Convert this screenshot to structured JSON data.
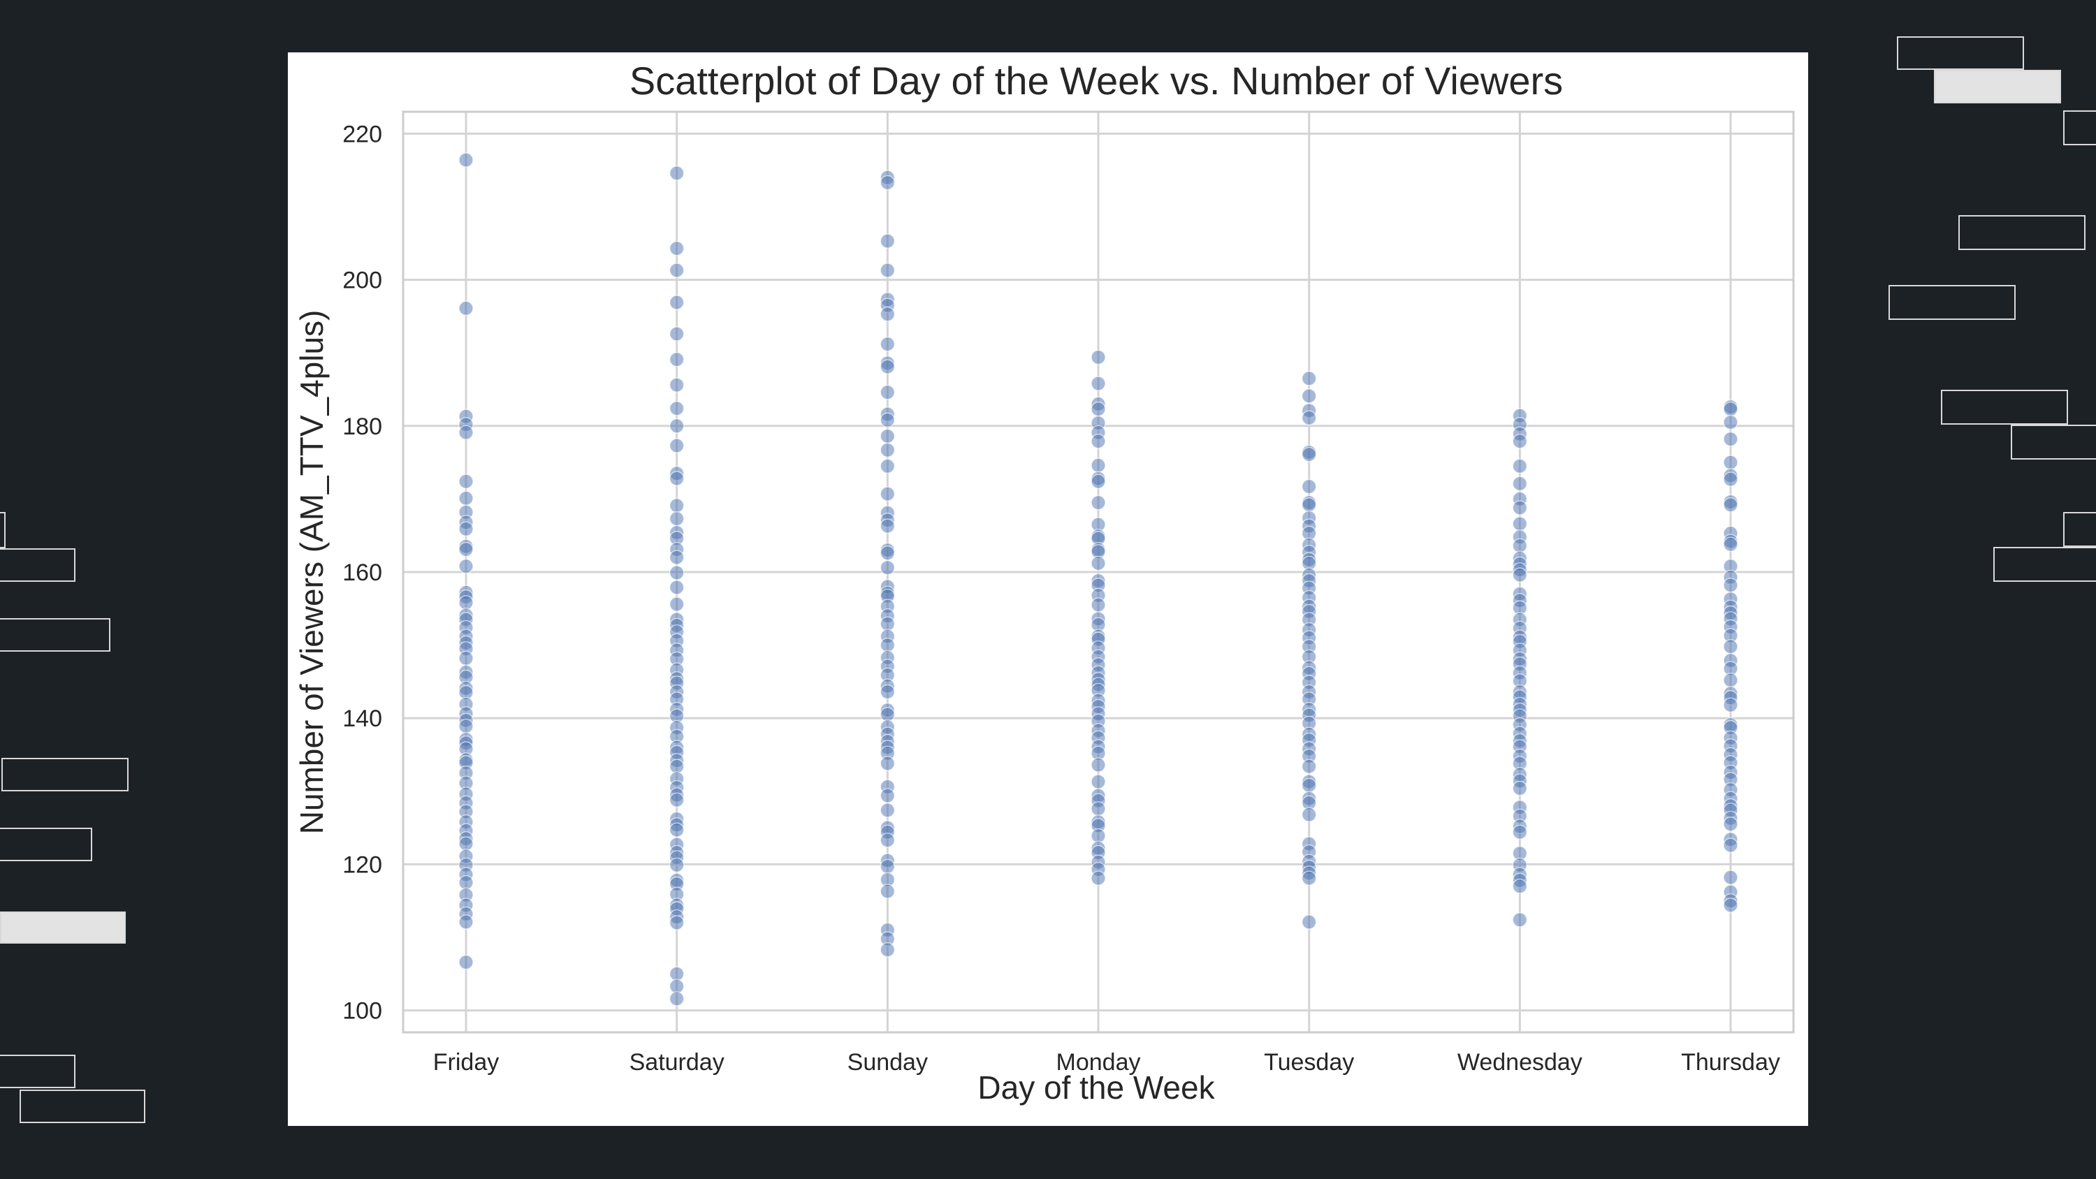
{
  "chart_data": {
    "type": "scatter",
    "title": "Scatterplot of Day of the Week vs. Number of Viewers",
    "xlabel": "Day of the Week",
    "ylabel": "Number of Viewers (AM_TTV_4plus)",
    "ylim": [
      97,
      223
    ],
    "yticks": [
      100,
      120,
      140,
      160,
      180,
      200,
      220
    ],
    "grid": true,
    "categories": [
      "Friday",
      "Saturday",
      "Sunday",
      "Monday",
      "Tuesday",
      "Wednesday",
      "Thursday"
    ],
    "point_color": "#4c72b0",
    "point_opacity": 0.5,
    "series": [
      {
        "values": [
          {
            "x": "Friday",
            "y": [
              216.4,
              196.1,
              181.3,
              180.2,
              179.1,
              172.4,
              170.1,
              168.2,
              166.8,
              165.9,
              163.5,
              163.1,
              160.8,
              157.2,
              156.6,
              155.8,
              154.1,
              153.5,
              152.4,
              151.2,
              150.3,
              149.5,
              148.2,
              146.3,
              145.6,
              144.1,
              143.5,
              141.9,
              140.6,
              139.7,
              138.9,
              137.1,
              136.6,
              135.8,
              134.3,
              133.9,
              132.5,
              131.1,
              129.6,
              128.4,
              127.2,
              125.8,
              124.6,
              123.5,
              122.8,
              121.1,
              119.9,
              118.6,
              117.5,
              115.8,
              114.4,
              113.2,
              112.1,
              106.6
            ]
          },
          {
            "x": "Saturday",
            "y": [
              214.6,
              204.3,
              201.3,
              196.9,
              192.6,
              189.1,
              185.6,
              182.4,
              180.0,
              177.3,
              173.5,
              172.8,
              169.1,
              167.3,
              165.4,
              164.6,
              163.1,
              162.0,
              159.9,
              157.9,
              155.6,
              153.5,
              152.7,
              151.8,
              150.6,
              149.3,
              148.1,
              146.6,
              145.4,
              144.8,
              143.6,
              142.6,
              141.2,
              140.3,
              138.7,
              137.5,
              136.0,
              135.3,
              134.2,
              133.4,
              131.7,
              130.5,
              129.5,
              128.8,
              126.2,
              125.4,
              124.7,
              122.7,
              121.6,
              120.9,
              119.9,
              117.8,
              117.3,
              115.9,
              114.4,
              113.9,
              112.8,
              112.0,
              105.0,
              103.3,
              101.6
            ]
          },
          {
            "x": "Sunday",
            "y": [
              214.0,
              213.3,
              205.3,
              201.3,
              197.3,
              196.5,
              195.3,
              191.2,
              188.6,
              188.1,
              184.6,
              181.6,
              180.8,
              178.6,
              176.7,
              174.5,
              170.7,
              168.1,
              167.1,
              166.3,
              163.0,
              162.6,
              160.6,
              158.0,
              157.1,
              156.7,
              155.3,
              154.0,
              152.9,
              151.2,
              150.0,
              148.3,
              147.1,
              145.9,
              144.4,
              143.6,
              141.1,
              140.5,
              138.8,
              137.8,
              136.8,
              136.0,
              135.2,
              133.8,
              130.6,
              129.4,
              127.4,
              125.0,
              124.4,
              123.3,
              120.5,
              119.7,
              117.9,
              116.3,
              111.0,
              109.8,
              108.3
            ]
          },
          {
            "x": "Monday",
            "y": [
              189.4,
              185.8,
              183.0,
              182.3,
              180.4,
              179.1,
              177.9,
              174.6,
              172.8,
              172.4,
              169.5,
              166.5,
              164.9,
              164.6,
              163.1,
              162.8,
              161.2,
              158.8,
              158.2,
              156.8,
              155.5,
              153.6,
              152.8,
              151.2,
              150.8,
              149.6,
              148.4,
              147.3,
              146.2,
              145.3,
              144.6,
              143.8,
              142.4,
              141.6,
              140.6,
              139.6,
              138.3,
              137.3,
              136.1,
              135.2,
              133.6,
              131.3,
              129.4,
              128.7,
              127.6,
              125.8,
              125.3,
              123.9,
              122.2,
              121.6,
              120.3,
              119.3,
              118.1
            ]
          },
          {
            "x": "Tuesday",
            "y": [
              186.5,
              184.1,
              182.1,
              181.1,
              176.4,
              176.1,
              171.7,
              169.5,
              169.2,
              167.4,
              166.3,
              165.3,
              163.7,
              162.7,
              161.7,
              161.2,
              159.6,
              158.8,
              157.8,
              156.5,
              155.3,
              154.6,
              153.5,
              152.1,
              151.0,
              149.8,
              148.4,
              146.9,
              146.1,
              144.9,
              143.6,
              142.6,
              141.2,
              140.4,
              139.3,
              137.8,
              137.0,
              135.8,
              134.8,
              133.4,
              131.3,
              130.8,
              129.0,
              128.4,
              126.8,
              122.8,
              121.7,
              120.4,
              119.6,
              118.8,
              118.1,
              112.1
            ]
          },
          {
            "x": "Wednesday",
            "y": [
              181.4,
              180.2,
              178.9,
              177.9,
              174.5,
              172.1,
              170.0,
              168.8,
              166.6,
              164.8,
              163.6,
              161.9,
              161.1,
              160.3,
              159.6,
              157.0,
              156.1,
              155.1,
              153.5,
              152.3,
              151.1,
              150.5,
              149.3,
              148.1,
              147.4,
              146.2,
              145.1,
              143.6,
              142.9,
              141.9,
              141.1,
              140.3,
              139.1,
              137.9,
              136.9,
              136.1,
              134.8,
              133.8,
              132.3,
              131.4,
              130.4,
              127.8,
              126.6,
              125.2,
              124.4,
              121.5,
              119.9,
              118.6,
              117.8,
              117.0,
              112.4
            ]
          },
          {
            "x": "Thursday",
            "y": [
              182.6,
              182.3,
              180.5,
              178.2,
              175.0,
              173.2,
              172.7,
              169.6,
              169.2,
              165.3,
              164.2,
              163.8,
              160.8,
              159.3,
              158.2,
              156.3,
              155.2,
              154.4,
              153.6,
              152.5,
              151.3,
              149.8,
              147.9,
              146.8,
              145.2,
              143.4,
              142.8,
              141.8,
              139.1,
              138.7,
              137.3,
              136.2,
              135.0,
              133.9,
              132.6,
              131.6,
              130.2,
              129.0,
              128.0,
              127.4,
              126.3,
              125.5,
              123.4,
              122.6,
              118.2,
              116.2,
              115.0,
              114.4
            ]
          }
        ]
      }
    ]
  }
}
